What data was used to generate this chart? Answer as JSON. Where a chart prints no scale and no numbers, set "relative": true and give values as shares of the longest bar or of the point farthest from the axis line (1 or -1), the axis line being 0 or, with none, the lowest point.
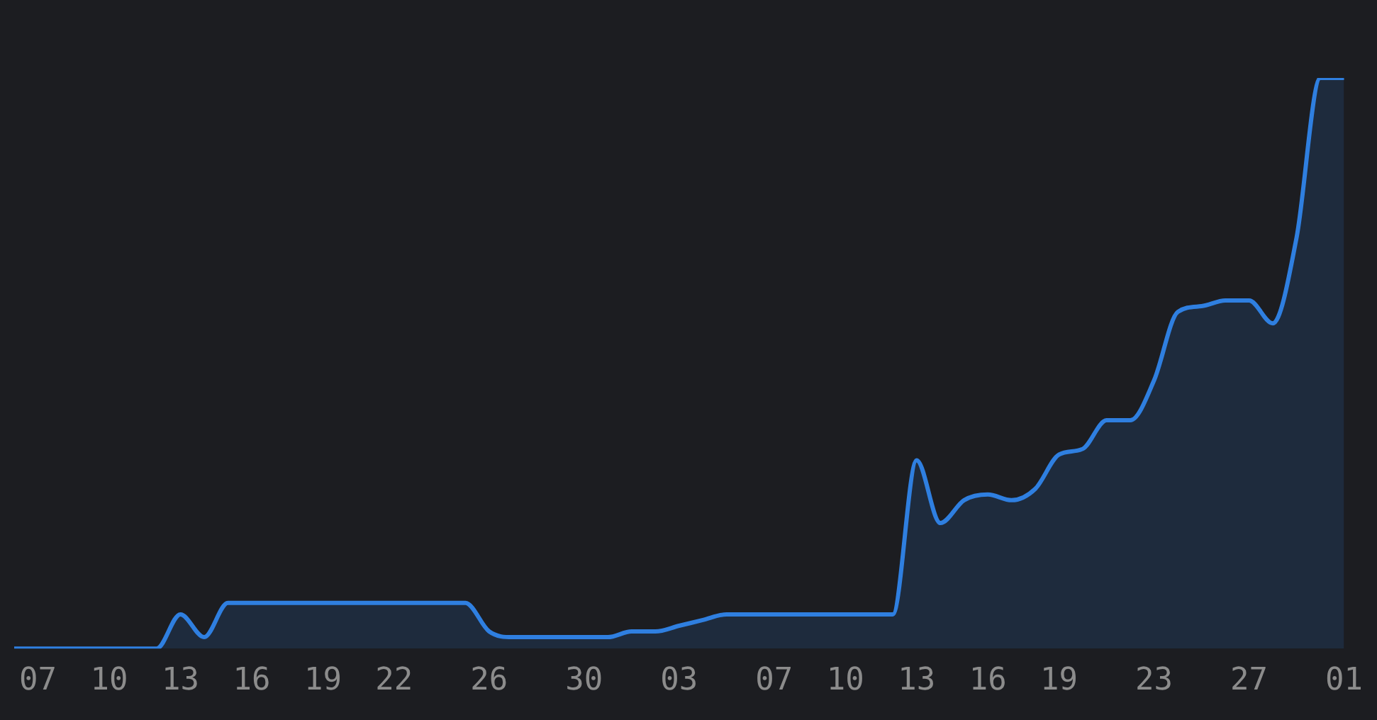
{
  "chart_data": {
    "type": "area",
    "relative": true,
    "categories": [
      null,
      "07",
      null,
      null,
      "10",
      null,
      null,
      "13",
      null,
      null,
      "16",
      null,
      null,
      "19",
      null,
      null,
      "22",
      null,
      null,
      null,
      "26",
      null,
      null,
      null,
      "30",
      null,
      null,
      null,
      "03",
      null,
      null,
      null,
      "07",
      null,
      null,
      "10",
      null,
      null,
      "13",
      null,
      null,
      "16",
      null,
      null,
      "19",
      null,
      null,
      null,
      "23",
      null,
      null,
      null,
      "27",
      null,
      null,
      null,
      "01"
    ],
    "series": [
      {
        "color": "#2f7fe0",
        "values": [
          0,
          0,
          0,
          0,
          0,
          0,
          0,
          0.06,
          0.02,
          0.08,
          0.08,
          0.08,
          0.08,
          0.08,
          0.08,
          0.08,
          0.08,
          0.08,
          0.08,
          0.08,
          0.03,
          0.02,
          0.02,
          0.02,
          0.02,
          0.02,
          0.03,
          0.03,
          0.04,
          0.05,
          0.06,
          0.06,
          0.06,
          0.06,
          0.06,
          0.06,
          0.06,
          0.06,
          0.33,
          0.22,
          0.26,
          0.27,
          0.26,
          0.28,
          0.34,
          0.35,
          0.4,
          0.4,
          0.47,
          0.59,
          0.6,
          0.61,
          0.61,
          0.57,
          0.72,
          1,
          1
        ]
      }
    ],
    "tick_labels": "x",
    "grid": false,
    "legend": false
  }
}
